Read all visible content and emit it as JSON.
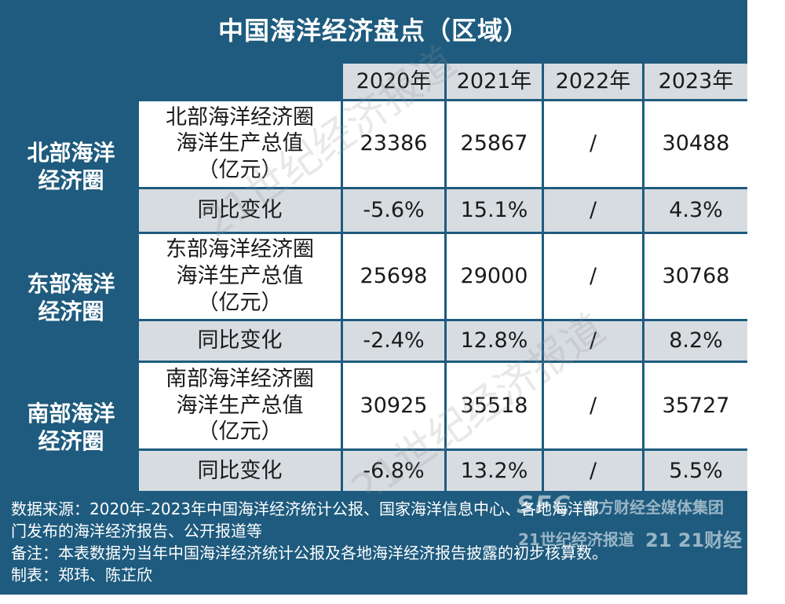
{
  "title": "中国海洋经济盘点（区域）",
  "years": [
    "2020年",
    "2021年",
    "2022年",
    "2023年"
  ],
  "regions": [
    {
      "name_lines": [
        "北部海洋",
        "经济圈"
      ],
      "gop_label_lines": [
        "北部海洋经济圈",
        "海洋生产总值",
        "（亿元）"
      ],
      "gop_values": [
        "23386",
        "25867",
        "/",
        "30488"
      ],
      "yoy_label": "同比变化",
      "yoy_values": [
        "-5.6%",
        "15.1%",
        "/",
        "4.3%"
      ]
    },
    {
      "name_lines": [
        "东部海洋",
        "经济圈"
      ],
      "gop_label_lines": [
        "东部海洋经济圈",
        "海洋生产总值",
        "（亿元）"
      ],
      "gop_values": [
        "25698",
        "29000",
        "/",
        "30768"
      ],
      "yoy_label": "同比变化",
      "yoy_values": [
        "-2.4%",
        "12.8%",
        "/",
        "8.2%"
      ]
    },
    {
      "name_lines": [
        "南部海洋",
        "经济圈"
      ],
      "gop_label_lines": [
        "南部海洋经济圈",
        "海洋生产总值",
        "（亿元）"
      ],
      "gop_values": [
        "30925",
        "35518",
        "/",
        "35727"
      ],
      "yoy_label": "同比变化",
      "yoy_values": [
        "-6.8%",
        "13.2%",
        "/",
        "5.5%"
      ]
    }
  ],
  "footer": {
    "source_line1": "数据来源：2020年-2023年中国海洋经济统计公报、国家海洋信息中心、各地海洋部",
    "source_line2": "门发布的海洋经济报告、公开报道等",
    "note": "备注：本表数据为当年中国海洋经济统计公报及各地海洋经济报告披露的初步核算数。",
    "author": "制表：郑玮、陈芷欣"
  },
  "watermark": "21世纪经济报道",
  "branding": {
    "sfc": "SFC",
    "group": "南方财经全媒体集团",
    "century": "21世纪经济报道",
    "caijing": "21 21财经"
  },
  "colors": {
    "frame": "#1e5b7e",
    "header_cell": "#d7dce1",
    "value_white": "#ffffff",
    "value_gray": "#d7dce1"
  }
}
